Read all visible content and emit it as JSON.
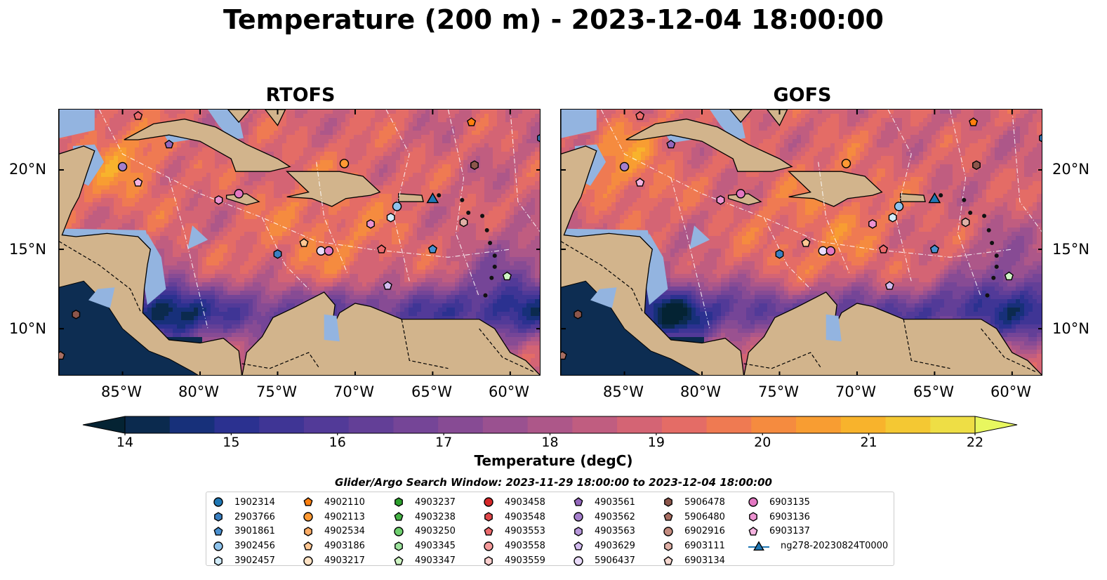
{
  "title": "Temperature (200 m) - 2023-12-04 18:00:00",
  "panels": [
    {
      "title": "RTOFS"
    },
    {
      "title": "GOFS"
    }
  ],
  "lat_labels": [
    "20°N",
    "15°N",
    "10°N"
  ],
  "lon_labels": [
    "85°W",
    "80°W",
    "75°W",
    "70°W",
    "65°W",
    "60°W"
  ],
  "colorbar": {
    "label": "Temperature (degC)",
    "ticks": [
      "14",
      "15",
      "16",
      "17",
      "18",
      "19",
      "20",
      "21",
      "22"
    ],
    "min": 13.5,
    "max": 22.5,
    "colors": [
      "#042333",
      "#0b2a4e",
      "#17307a",
      "#2b3190",
      "#3f3595",
      "#523a98",
      "#633f97",
      "#754597",
      "#874b94",
      "#9a5190",
      "#ad5789",
      "#c05d80",
      "#d46474",
      "#e46c66",
      "#ef7a52",
      "#f58b3f",
      "#f89d32",
      "#f8b32c",
      "#f4c833",
      "#eede45",
      "#e8f75f"
    ]
  },
  "colormap_name": "thermal",
  "search_window": "Glider/Argo Search Window: 2023-11-29 18:00:00 to 2023-12-04 18:00:00",
  "legend": {
    "columns": [
      [
        {
          "label": "1902314",
          "marker": "circle",
          "color": "#1f77b4"
        },
        {
          "label": "2903766",
          "marker": "hexagon",
          "color": "#3a7fc0"
        },
        {
          "label": "3901861",
          "marker": "pentagon",
          "color": "#4a90d0"
        },
        {
          "label": "3902456",
          "marker": "circle",
          "color": "#8ec3ec"
        },
        {
          "label": "3902457",
          "marker": "hexagon",
          "color": "#d2ecfa"
        }
      ],
      [
        {
          "label": "4902110",
          "marker": "pentagon",
          "color": "#ff7f0e"
        },
        {
          "label": "4902113",
          "marker": "circle",
          "color": "#ff9933"
        },
        {
          "label": "4902534",
          "marker": "hexagon",
          "color": "#ffad66"
        },
        {
          "label": "4903186",
          "marker": "pentagon",
          "color": "#ffc793"
        },
        {
          "label": "4903217",
          "marker": "circle",
          "color": "#ffe2c4"
        }
      ],
      [
        {
          "label": "4903237",
          "marker": "hexagon",
          "color": "#2ca02c"
        },
        {
          "label": "4903238",
          "marker": "pentagon",
          "color": "#45b345"
        },
        {
          "label": "4903250",
          "marker": "circle",
          "color": "#6fd06f"
        },
        {
          "label": "4903345",
          "marker": "hexagon",
          "color": "#9de39d"
        },
        {
          "label": "4903347",
          "marker": "pentagon",
          "color": "#cff5c4"
        }
      ],
      [
        {
          "label": "4903458",
          "marker": "circle",
          "color": "#d62728"
        },
        {
          "label": "4903548",
          "marker": "hexagon",
          "color": "#e0474a"
        },
        {
          "label": "4903553",
          "marker": "pentagon",
          "color": "#ec6a6c"
        },
        {
          "label": "4903558",
          "marker": "circle",
          "color": "#f59a9a"
        },
        {
          "label": "4903559",
          "marker": "hexagon",
          "color": "#fcd0cf"
        }
      ],
      [
        {
          "label": "4903561",
          "marker": "pentagon",
          "color": "#9467bd"
        },
        {
          "label": "4903562",
          "marker": "circle",
          "color": "#a57fcc"
        },
        {
          "label": "4903563",
          "marker": "hexagon",
          "color": "#b898dc"
        },
        {
          "label": "4903629",
          "marker": "pentagon",
          "color": "#d2bbef"
        },
        {
          "label": "5906437",
          "marker": "circle",
          "color": "#eadcfb"
        }
      ],
      [
        {
          "label": "5906478",
          "marker": "hexagon",
          "color": "#8c564b"
        },
        {
          "label": "5906480",
          "marker": "pentagon",
          "color": "#a86e62"
        },
        {
          "label": "6902916",
          "marker": "circle",
          "color": "#c48c80"
        },
        {
          "label": "6903111",
          "marker": "hexagon",
          "color": "#dfb0a6"
        },
        {
          "label": "6903134",
          "marker": "pentagon",
          "color": "#f6d8d0"
        }
      ],
      [
        {
          "label": "6903135",
          "marker": "circle",
          "color": "#e377c2"
        },
        {
          "label": "6903136",
          "marker": "hexagon",
          "color": "#ec92d0"
        },
        {
          "label": "6903137",
          "marker": "pentagon",
          "color": "#f5b3e0"
        },
        {
          "label": "ng278-20230824T0000",
          "marker": "triangle-line",
          "color": "#1f77b4"
        }
      ]
    ]
  },
  "floats": [
    {
      "id": "4903562",
      "lon": -85.0,
      "lat": 20.2
    },
    {
      "id": "6903137",
      "lon": -84.0,
      "lat": 19.2
    },
    {
      "id": "4903561",
      "lon": -82.0,
      "lat": 21.6
    },
    {
      "id": "6903136",
      "lon": -78.8,
      "lat": 18.1
    },
    {
      "id": "6903135",
      "lon": -77.5,
      "lat": 18.5
    },
    {
      "id": "4902113",
      "lon": -70.7,
      "lat": 20.4
    },
    {
      "id": "4902110",
      "lon": -62.5,
      "lat": 23.0
    },
    {
      "id": "5906478",
      "lon": -62.3,
      "lat": 20.3
    },
    {
      "id": "3902456",
      "lon": -67.3,
      "lat": 17.7
    },
    {
      "id": "3902457",
      "lon": -67.7,
      "lat": 17.0
    },
    {
      "id": "6903136",
      "lon": -69.0,
      "lat": 16.6
    },
    {
      "id": "6903111",
      "lon": -63.0,
      "lat": 16.7
    },
    {
      "id": "4903186",
      "lon": -73.3,
      "lat": 15.4
    },
    {
      "id": "5906437",
      "lon": -72.2,
      "lat": 14.9
    },
    {
      "id": "6903135",
      "lon": -71.7,
      "lat": 14.9
    },
    {
      "id": "4903553",
      "lon": -68.3,
      "lat": 15.0
    },
    {
      "id": "3901861",
      "lon": -65.0,
      "lat": 15.0
    },
    {
      "id": "2903766",
      "lon": -75.0,
      "lat": 14.7
    },
    {
      "id": "4903629",
      "lon": -67.9,
      "lat": 12.7
    },
    {
      "id": "4903347",
      "lon": -60.2,
      "lat": 13.3
    },
    {
      "id": "5906478",
      "lon": -88.0,
      "lat": 10.9
    },
    {
      "id": "5906480",
      "lon": -89.0,
      "lat": 8.3
    },
    {
      "id": "4903553",
      "lon": -84.0,
      "lat": 23.4
    },
    {
      "id": "2903766",
      "lon": -58.0,
      "lat": 22.0
    },
    {
      "id": "ng278-20230824T0000",
      "lon": -65.0,
      "lat": 18.2
    }
  ]
}
